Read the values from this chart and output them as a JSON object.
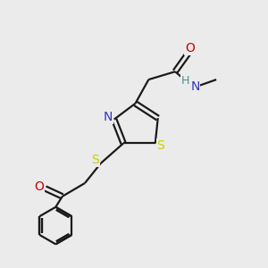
{
  "background_color": "#ebebeb",
  "bond_color": "#1a1a1a",
  "S_color": "#cccc00",
  "N_color": "#3333bb",
  "O_color": "#cc0000",
  "H_color": "#4a9090",
  "line_width": 1.6,
  "figsize": [
    3.0,
    3.0
  ],
  "dpi": 100,
  "xlim": [
    0,
    10
  ],
  "ylim": [
    0,
    10
  ]
}
